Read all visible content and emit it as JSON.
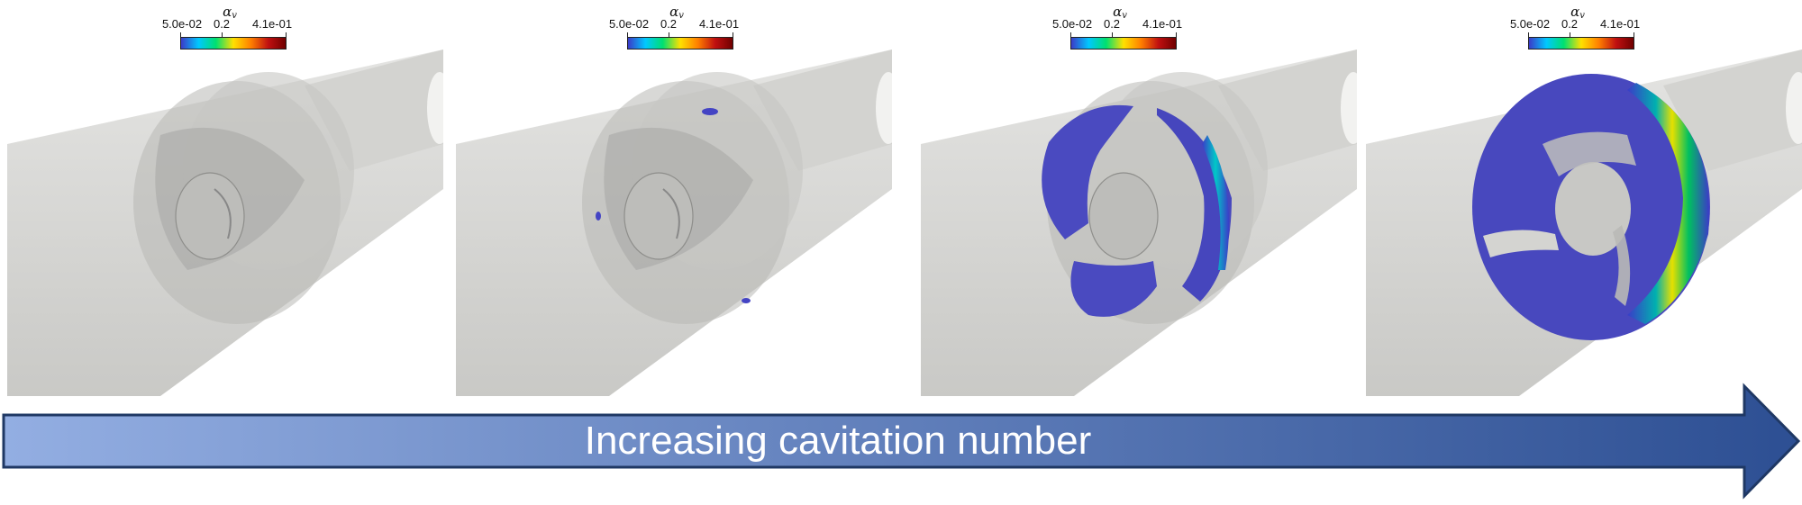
{
  "colorbar": {
    "title_symbol": "α",
    "title_subscript": "v",
    "tick_min": "5.0e-02",
    "tick_mid": "0.2",
    "tick_max": "4.1e-01",
    "colors": [
      "#3b3bc8",
      "#00c8ff",
      "#00e070",
      "#ffe000",
      "#ff8000",
      "#c01010",
      "#700000"
    ]
  },
  "panels": [
    {
      "vapor": "none"
    },
    {
      "vapor": "traces"
    },
    {
      "vapor": "partial"
    },
    {
      "vapor": "full"
    }
  ],
  "arrow": {
    "label": "Increasing cavitation number",
    "color_start": "#93aee2",
    "color_end": "#2d4f93",
    "border": "#1f3864"
  }
}
